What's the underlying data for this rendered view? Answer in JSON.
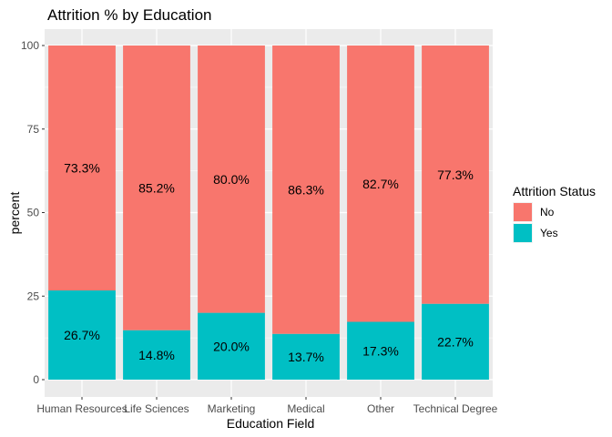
{
  "chart_data": {
    "type": "bar",
    "stacked": true,
    "title": "Attrition % by Education",
    "xlabel": "Education Field",
    "ylabel": "percent",
    "ylim": [
      0,
      100
    ],
    "yticks": [
      0,
      25,
      50,
      75,
      100
    ],
    "grid": true,
    "legend_position": "right",
    "legend_title": "Attrition Status",
    "categories": [
      "Human Resources",
      "Life Sciences",
      "Marketing",
      "Medical",
      "Other",
      "Technical Degree"
    ],
    "series": [
      {
        "name": "No",
        "color": "#F8766D",
        "values": [
          73.3,
          85.2,
          80.0,
          86.3,
          82.7,
          77.3
        ],
        "labels": [
          "73.3%",
          "85.2%",
          "80.0%",
          "86.3%",
          "82.7%",
          "77.3%"
        ]
      },
      {
        "name": "Yes",
        "color": "#00BFC4",
        "values": [
          26.7,
          14.8,
          20.0,
          13.7,
          17.3,
          22.7
        ],
        "labels": [
          "26.7%",
          "14.8%",
          "20.0%",
          "13.7%",
          "17.3%",
          "22.7%"
        ]
      }
    ],
    "panel_background": "#EBEBEB",
    "grid_color": "#FFFFFF"
  }
}
